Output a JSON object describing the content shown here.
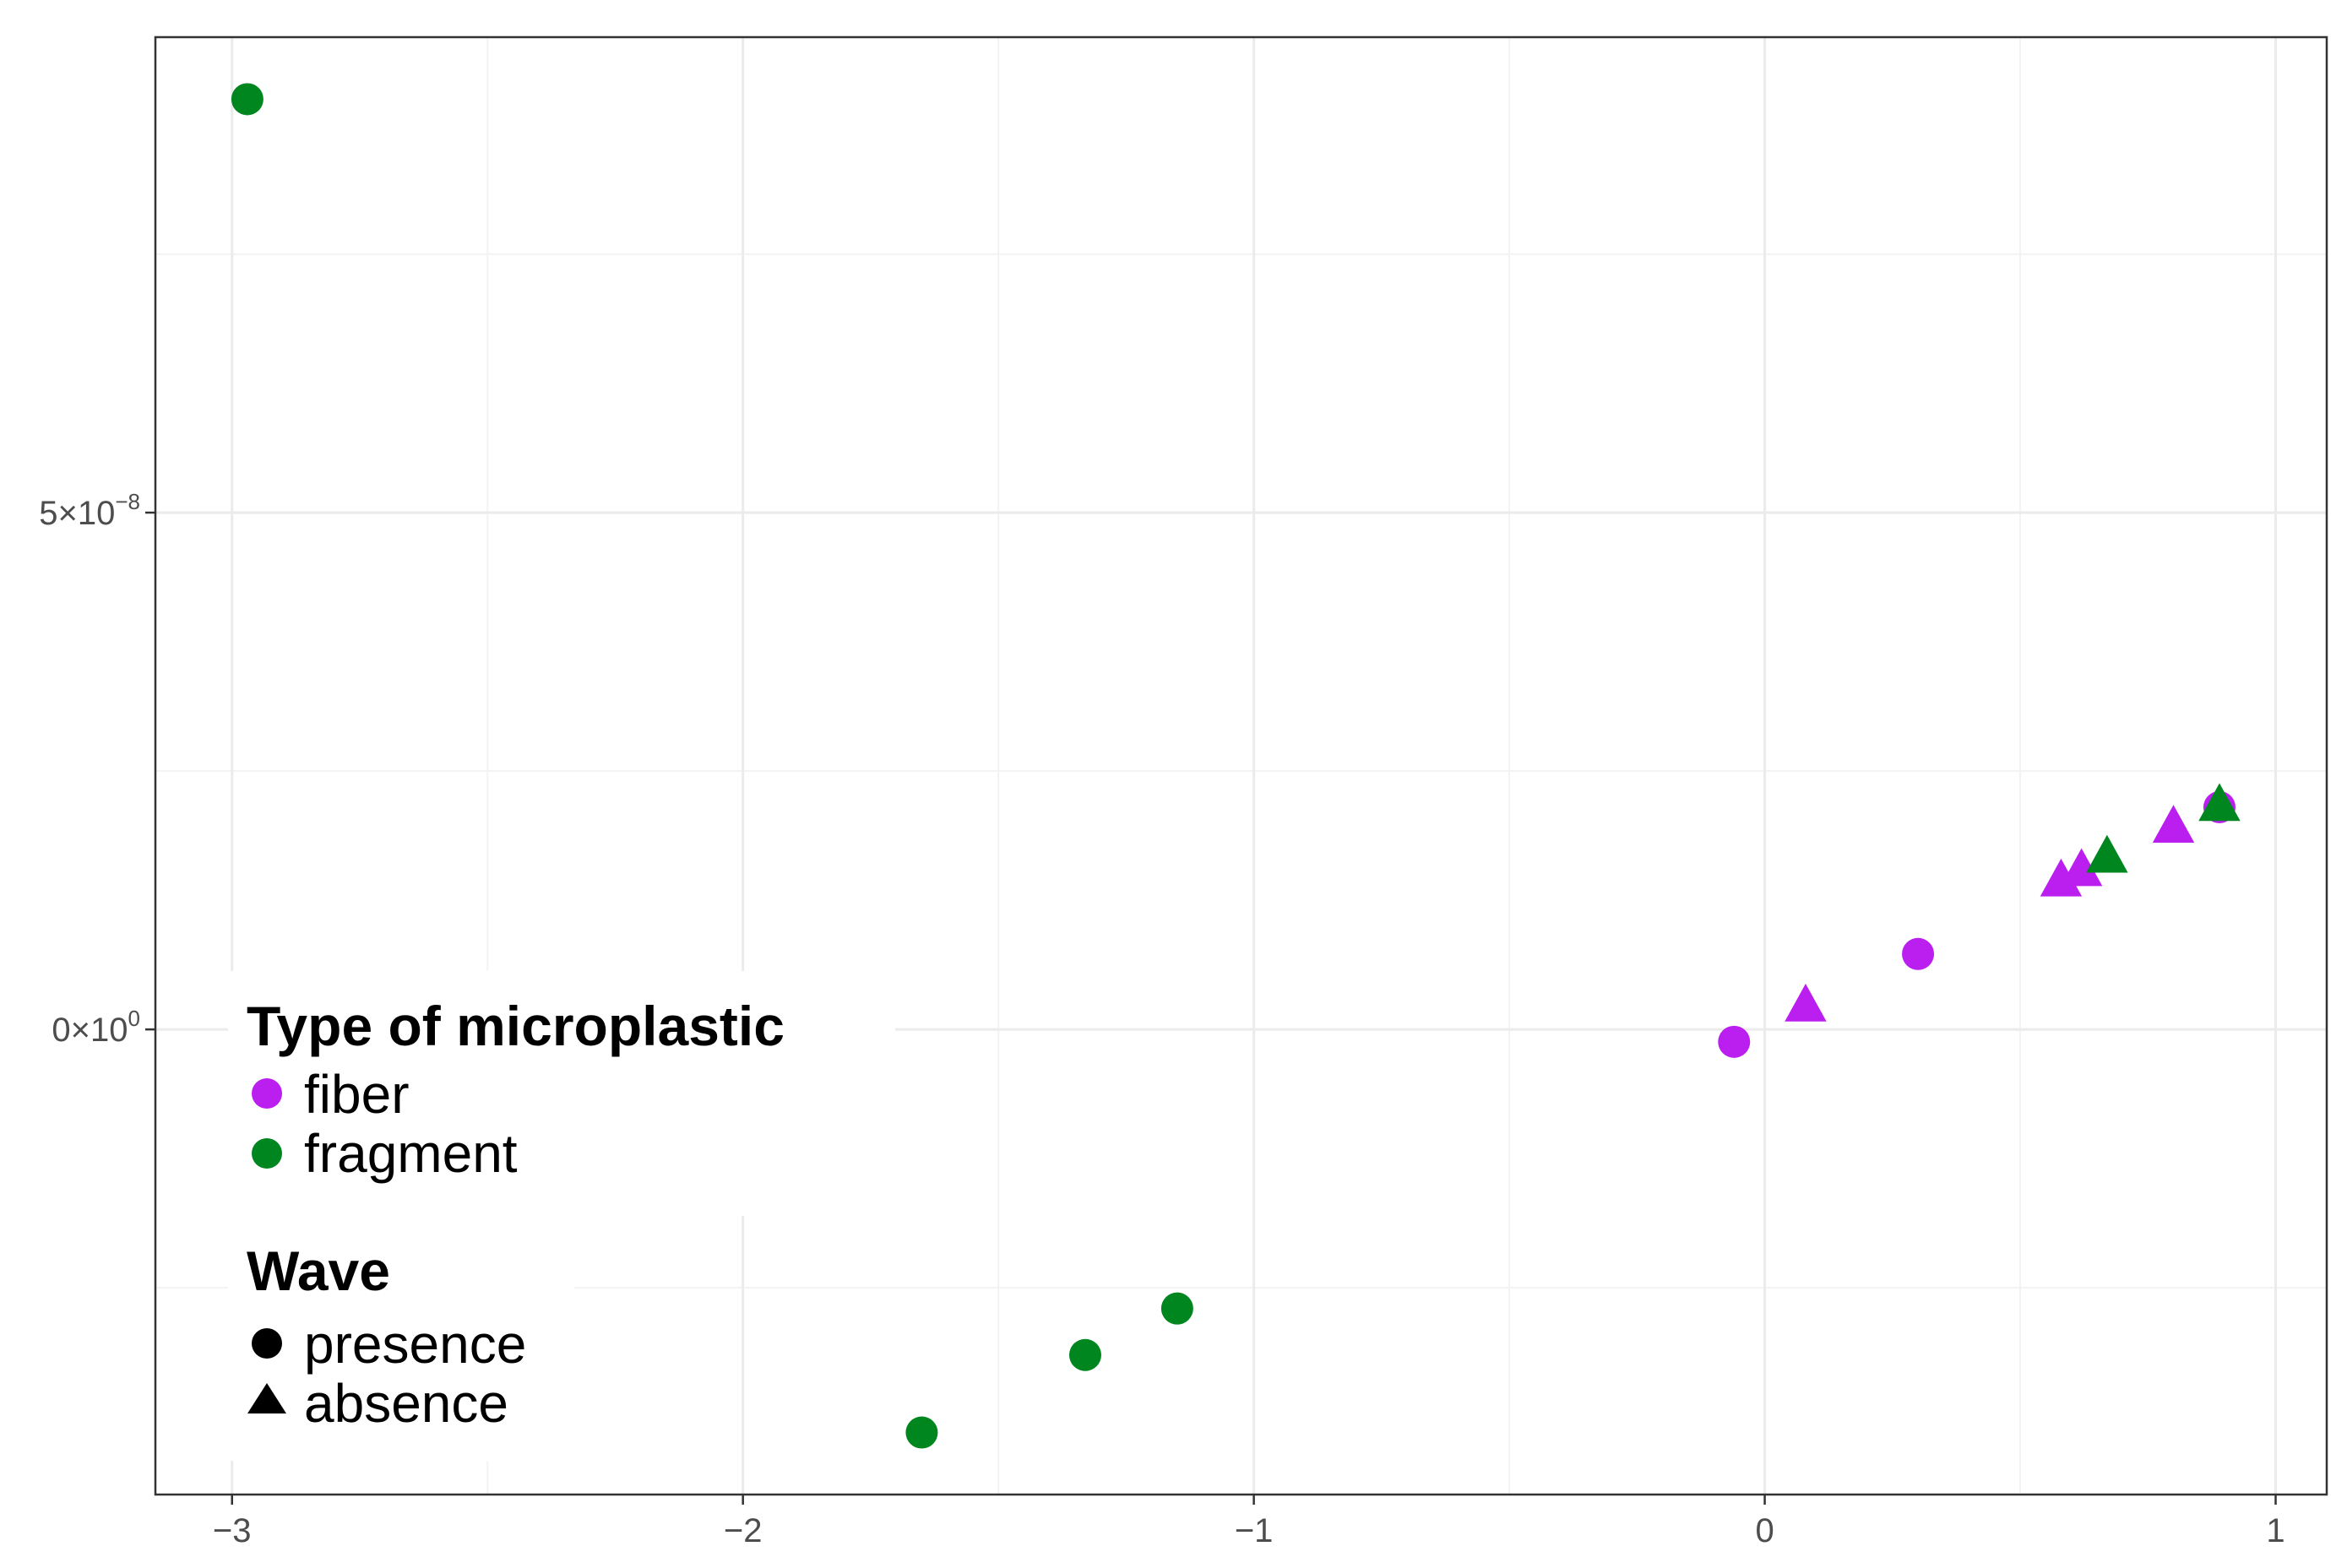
{
  "chart_data": {
    "type": "scatter",
    "title": "",
    "xlabel": "",
    "ylabel": "",
    "xlim": [
      -3.15,
      1.1
    ],
    "ylim": [
      -4.5e-08,
      9.6e-08
    ],
    "grid": true,
    "x_major_ticks": [
      -3,
      -2,
      -1,
      0,
      1
    ],
    "x_tick_labels": [
      "−3",
      "−2",
      "−1",
      "0",
      "1"
    ],
    "x_minor_ticks": [
      -2.5,
      -1.5,
      -0.5,
      0.5
    ],
    "y_ticks": [
      {
        "value": 5e-08,
        "mantissa": "5×10",
        "exponent": "−8"
      },
      {
        "value": 0,
        "mantissa": "0×10",
        "exponent": "0"
      }
    ],
    "y_minor_ticks": [
      -2.5e-08,
      2.5e-08,
      7.5e-08
    ],
    "colors": {
      "fiber": "#bb1ff0",
      "fragment": "#00861f"
    },
    "legend_placement": "bottom-left",
    "legend": {
      "type": {
        "title": "Type of microplastic",
        "items": [
          {
            "label": "fiber",
            "key": "fiber"
          },
          {
            "label": "fragment",
            "key": "fragment"
          }
        ]
      },
      "wave": {
        "title": "Wave",
        "items": [
          {
            "label": "presence",
            "shape": "circle"
          },
          {
            "label": "absence",
            "shape": "triangle"
          }
        ]
      }
    },
    "points": [
      {
        "x": -2.97,
        "y": 9e-08,
        "type": "fragment",
        "wave": "presence"
      },
      {
        "x": -1.65,
        "y": -3.9e-08,
        "type": "fragment",
        "wave": "presence"
      },
      {
        "x": -1.33,
        "y": -3.15e-08,
        "type": "fragment",
        "wave": "presence"
      },
      {
        "x": -1.15,
        "y": -2.7e-08,
        "type": "fragment",
        "wave": "presence"
      },
      {
        "x": -0.06,
        "y": -1.2e-09,
        "type": "fiber",
        "wave": "presence"
      },
      {
        "x": 0.08,
        "y": 2.3e-09,
        "type": "fiber",
        "wave": "absence"
      },
      {
        "x": 0.3,
        "y": 7.3e-09,
        "type": "fiber",
        "wave": "presence"
      },
      {
        "x": 0.58,
        "y": 1.44e-08,
        "type": "fiber",
        "wave": "absence"
      },
      {
        "x": 0.62,
        "y": 1.54e-08,
        "type": "fiber",
        "wave": "absence"
      },
      {
        "x": 0.67,
        "y": 1.67e-08,
        "type": "fragment",
        "wave": "absence"
      },
      {
        "x": 0.8,
        "y": 1.96e-08,
        "type": "fiber",
        "wave": "absence"
      },
      {
        "x": 0.89,
        "y": 2.15e-08,
        "type": "fiber",
        "wave": "presence"
      },
      {
        "x": 0.89,
        "y": 2.17e-08,
        "type": "fragment",
        "wave": "absence"
      }
    ]
  }
}
